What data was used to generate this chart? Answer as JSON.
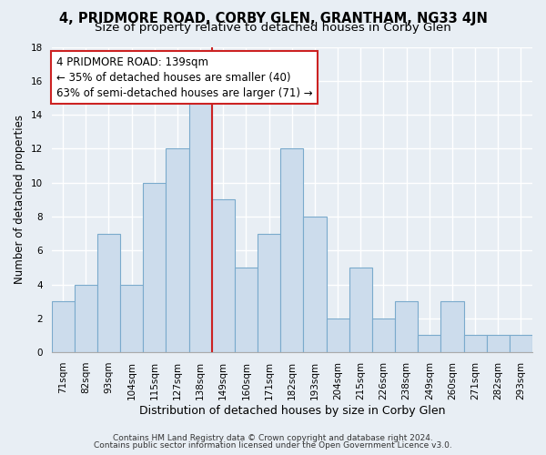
{
  "title": "4, PRIDMORE ROAD, CORBY GLEN, GRANTHAM, NG33 4JN",
  "subtitle": "Size of property relative to detached houses in Corby Glen",
  "xlabel": "Distribution of detached houses by size in Corby Glen",
  "ylabel": "Number of detached properties",
  "categories": [
    "71sqm",
    "82sqm",
    "93sqm",
    "104sqm",
    "115sqm",
    "127sqm",
    "138sqm",
    "149sqm",
    "160sqm",
    "171sqm",
    "182sqm",
    "193sqm",
    "204sqm",
    "215sqm",
    "226sqm",
    "238sqm",
    "249sqm",
    "260sqm",
    "271sqm",
    "282sqm",
    "293sqm"
  ],
  "values": [
    3,
    4,
    7,
    4,
    10,
    12,
    15,
    9,
    5,
    7,
    12,
    8,
    2,
    5,
    2,
    3,
    1,
    3,
    1,
    1,
    1
  ],
  "bar_color": "#ccdcec",
  "bar_edge_color": "#7aaacc",
  "vline_x_idx": 6.5,
  "vline_color": "#cc2222",
  "annotation_line1": "4 PRIDMORE ROAD: 139sqm",
  "annotation_line2": "← 35% of detached houses are smaller (40)",
  "annotation_line3": "63% of semi-detached houses are larger (71) →",
  "annotation_box_color": "#ffffff",
  "annotation_box_edge_color": "#cc2222",
  "ylim": [
    0,
    18
  ],
  "yticks": [
    0,
    2,
    4,
    6,
    8,
    10,
    12,
    14,
    16,
    18
  ],
  "footer_line1": "Contains HM Land Registry data © Crown copyright and database right 2024.",
  "footer_line2": "Contains public sector information licensed under the Open Government Licence v3.0.",
  "background_color": "#e8eef4",
  "grid_color": "#ffffff",
  "title_fontsize": 10.5,
  "subtitle_fontsize": 9.5,
  "xlabel_fontsize": 9,
  "ylabel_fontsize": 8.5,
  "tick_fontsize": 7.5,
  "annotation_fontsize": 8.5,
  "footer_fontsize": 6.5
}
